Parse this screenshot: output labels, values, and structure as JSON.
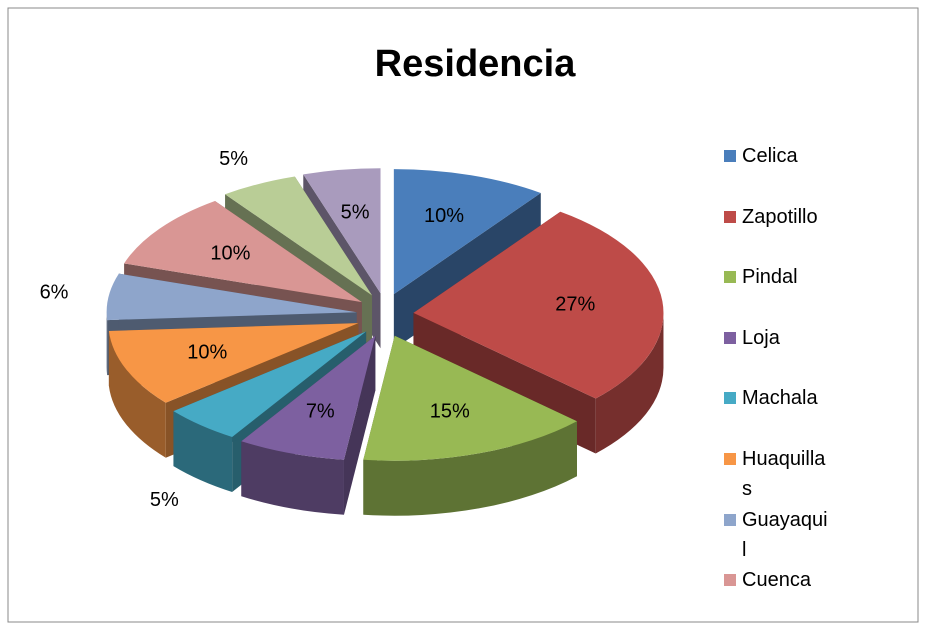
{
  "chart_data": {
    "type": "pie3d",
    "title": "Residencia",
    "categories": [
      "Celica",
      "Zapotillo",
      "Pindal",
      "Loja",
      "Machala",
      "Huaquillas",
      "Guayaquil",
      "Cuenca",
      null,
      null
    ],
    "values": [
      10,
      27,
      15,
      7,
      5,
      10,
      6,
      10,
      5,
      5
    ],
    "value_labels": [
      "10%",
      "27%",
      "15%",
      "7%",
      "5%",
      "10%",
      "6%",
      "10%",
      "5%",
      "5%"
    ],
    "colors": [
      "#4a7ebb",
      "#be4b48",
      "#98b954",
      "#7d60a0",
      "#46aac5",
      "#f79646",
      "#8ea5cb",
      "#d99694",
      "#b9cd96",
      "#a99bbd"
    ],
    "legend": "right"
  }
}
